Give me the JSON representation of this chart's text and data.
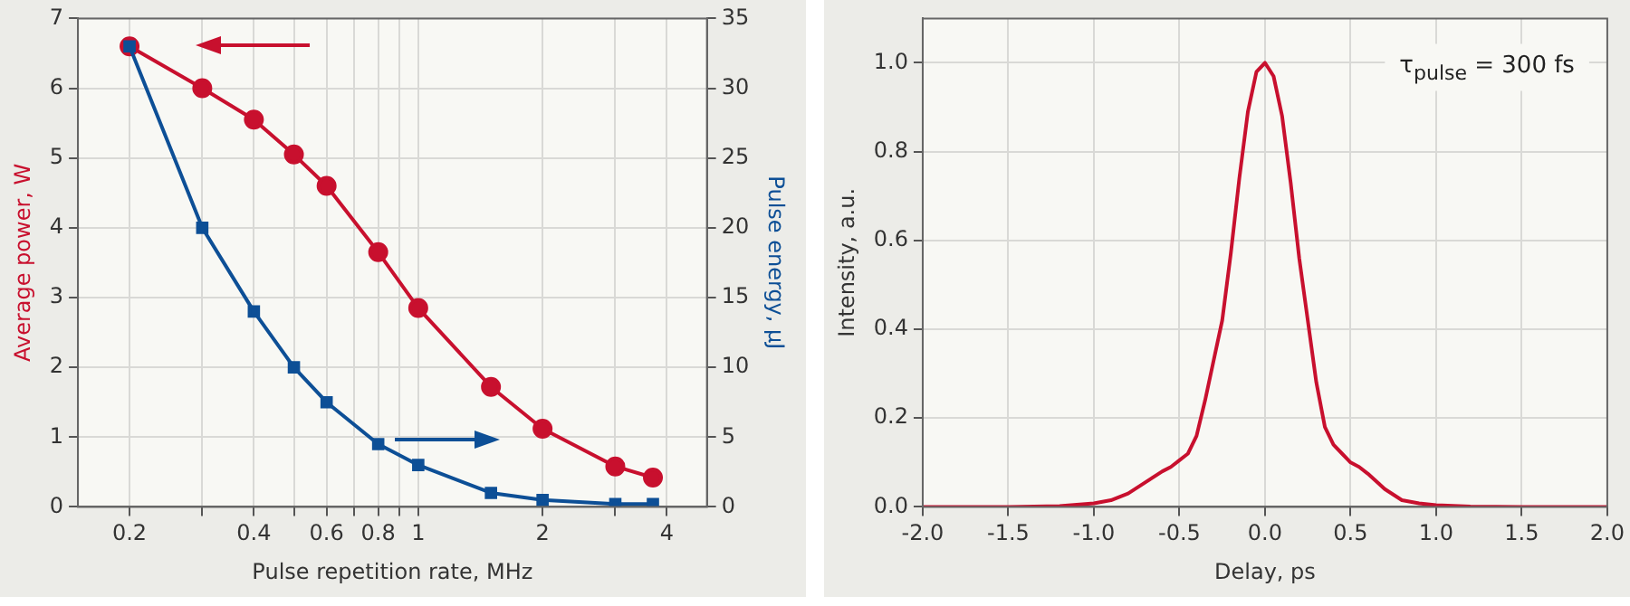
{
  "chart_data": [
    {
      "type": "line",
      "xlabel": "Pulse repetition rate, MHz",
      "ylabel": "Average power, W",
      "y2label": "Pulse energy, µJ",
      "log": "x",
      "x": [
        0.2,
        0.3,
        0.4,
        0.5,
        0.6,
        0.8,
        1,
        1.5,
        2,
        3,
        3.7
      ],
      "series": [
        {
          "color": "#c8102e",
          "marker": "circle",
          "values": [
            6.6,
            6.0,
            5.55,
            5.05,
            4.6,
            3.65,
            2.85,
            1.72,
            1.12,
            0.58,
            0.42
          ]
        },
        {
          "color": "#0d4f96",
          "marker": "square",
          "axis": "y2",
          "values": [
            33,
            20,
            14,
            10,
            7.5,
            4.5,
            3,
            1,
            0.5,
            0.2,
            0.2
          ]
        }
      ],
      "xlim": [
        0.15,
        5
      ],
      "xticks": [
        0.2,
        {
          "value": 0.3,
          "label": null
        },
        0.4,
        {
          "value": 0.5,
          "label": null
        },
        0.6,
        {
          "value": 0.7,
          "label": null
        },
        0.8,
        {
          "value": 0.9,
          "label": null
        },
        1,
        2,
        {
          "value": 3,
          "label": null
        },
        4
      ],
      "ylim": [
        0,
        7
      ],
      "yticks": [
        0,
        1,
        2,
        3,
        4,
        5,
        6,
        7
      ],
      "y2lim": [
        0,
        35
      ],
      "y2ticks": [
        0,
        5,
        10,
        15,
        20,
        25,
        30,
        35
      ],
      "grid": true,
      "legend": false
    },
    {
      "type": "line",
      "xlabel": "Delay, ps",
      "ylabel": "Intensity, a.u.",
      "annotations": [
        "τ$_{pulse}$ = 300 fs"
      ],
      "series": [
        {
          "color": "#c8102e",
          "x": [
            -2,
            -1.5,
            -1.2,
            -1.0,
            -0.9,
            -0.8,
            -0.7,
            -0.6,
            -0.55,
            -0.5,
            -0.45,
            -0.4,
            -0.35,
            -0.3,
            -0.25,
            -0.2,
            -0.15,
            -0.1,
            -0.05,
            0,
            0.05,
            0.1,
            0.15,
            0.2,
            0.25,
            0.3,
            0.35,
            0.4,
            0.45,
            0.5,
            0.55,
            0.6,
            0.7,
            0.8,
            0.9,
            1.0,
            1.2,
            1.5,
            2
          ],
          "values": [
            0,
            0,
            0.002,
            0.008,
            0.015,
            0.03,
            0.055,
            0.08,
            0.09,
            0.105,
            0.12,
            0.16,
            0.24,
            0.33,
            0.42,
            0.57,
            0.74,
            0.89,
            0.98,
            1.0,
            0.97,
            0.88,
            0.73,
            0.56,
            0.42,
            0.28,
            0.18,
            0.14,
            0.12,
            0.1,
            0.09,
            0.075,
            0.04,
            0.015,
            0.008,
            0.004,
            0.001,
            0,
            0
          ]
        }
      ],
      "xlim": [
        -2,
        2
      ],
      "xticks": [
        {
          "value": -2,
          "label": "-2.0"
        },
        {
          "value": -1.5,
          "label": "-1.5"
        },
        {
          "value": -1,
          "label": "-1.0"
        },
        {
          "value": -0.5,
          "label": "-0.5"
        },
        {
          "value": 0,
          "label": "0.0"
        },
        {
          "value": 0.5,
          "label": "0.5"
        },
        {
          "value": 1,
          "label": "1.0"
        },
        {
          "value": 1.5,
          "label": "1.5"
        },
        {
          "value": 2,
          "label": "2.0"
        }
      ],
      "ylim": [
        0,
        1.1
      ],
      "yticks": [
        {
          "value": 0,
          "label": "0.0"
        },
        {
          "value": 0.2,
          "label": "0.2"
        },
        {
          "value": 0.4,
          "label": "0.4"
        },
        {
          "value": 0.6,
          "label": "0.6"
        },
        {
          "value": 0.8,
          "label": "0.8"
        },
        {
          "value": 1,
          "label": "1.0"
        }
      ],
      "grid": true,
      "marker": "none",
      "legend": false
    }
  ]
}
